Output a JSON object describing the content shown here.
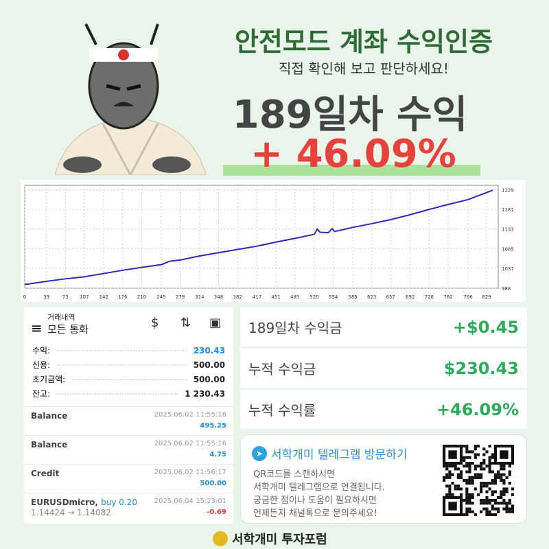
{
  "header": {
    "title": "안전모드 계좌 수익인증",
    "subtitle": "직접 확인해 보고 판단하세요!",
    "days_profit": "189일차 수익",
    "percent": "+ 46.09%"
  },
  "colors": {
    "title": "#2f6b34",
    "percent": "#e8403a",
    "positive": "#2cab5a",
    "blue": "#1e88e5",
    "negative": "#e53935"
  },
  "chart_data": {
    "type": "line",
    "title": "",
    "x_ticks": [
      0,
      39,
      73,
      107,
      142,
      176,
      210,
      245,
      279,
      314,
      348,
      382,
      417,
      451,
      485,
      520,
      554,
      589,
      623,
      657,
      692,
      726,
      760,
      796,
      829
    ],
    "y_ticks": [
      988,
      1037,
      1085,
      1133,
      1181,
      1229
    ],
    "xlim": [
      0,
      850
    ],
    "ylim": [
      988,
      1240
    ],
    "grid": true,
    "x": [
      0,
      40,
      73,
      107,
      142,
      176,
      210,
      246,
      260,
      279,
      314,
      348,
      382,
      417,
      451,
      485,
      520,
      525,
      530,
      545,
      552,
      556,
      564,
      589,
      623,
      657,
      692,
      726,
      760,
      796,
      840
    ],
    "y": [
      997,
      1005,
      1011,
      1016,
      1024,
      1032,
      1039,
      1046,
      1054,
      1057,
      1067,
      1075,
      1083,
      1091,
      1101,
      1110,
      1120,
      1133,
      1125,
      1124,
      1134,
      1127,
      1129,
      1137,
      1146,
      1156,
      1168,
      1181,
      1193,
      1205,
      1228
    ]
  },
  "history": {
    "label": "거래내역",
    "currency": "모든 통화",
    "icons": [
      "menu-icon",
      "currency-exchange-icon",
      "sort-icon",
      "account-icon"
    ],
    "summary": [
      {
        "label": "수익:",
        "value": "230.43",
        "blue": true
      },
      {
        "label": "신용:",
        "value": "500.00"
      },
      {
        "label": "초기금액:",
        "value": "500.00"
      },
      {
        "label": "잔고:",
        "value": "1 230.43"
      }
    ],
    "rows": [
      {
        "name": "Balance",
        "date": "2025.06.02 11:55:16",
        "amount": "495.25"
      },
      {
        "name": "Balance",
        "date": "2025.06.02 11:55:16",
        "amount": "4.75"
      },
      {
        "name": "Credit",
        "date": "2025.06.02 11:56:17",
        "amount": "500.00"
      }
    ],
    "trade": {
      "symbol": "EURUSDmicro,",
      "side": "buy 0.20",
      "prices": "1.14424 → 1.14082",
      "date": "2025.06.04 15:23:01",
      "amount": "-0.69"
    }
  },
  "cards": [
    {
      "label": "189일차 수익금",
      "value": "+$0.45"
    },
    {
      "label": "누적 수익금",
      "value": "$230.43"
    },
    {
      "label": "누적 수익률",
      "value": "+46.09%"
    }
  ],
  "telegram": {
    "title": "서학개미 텔레그램 방문하기",
    "lines": [
      "QR코드를 스캔하시면",
      "서학개미 텔레그램으로 연결됩니다.",
      "궁금한 점이나 도움이 필요하시면",
      "언제든지 채널톡으로 문의주세요!"
    ]
  },
  "footer": {
    "brand": "서학개미 투자포럼"
  }
}
